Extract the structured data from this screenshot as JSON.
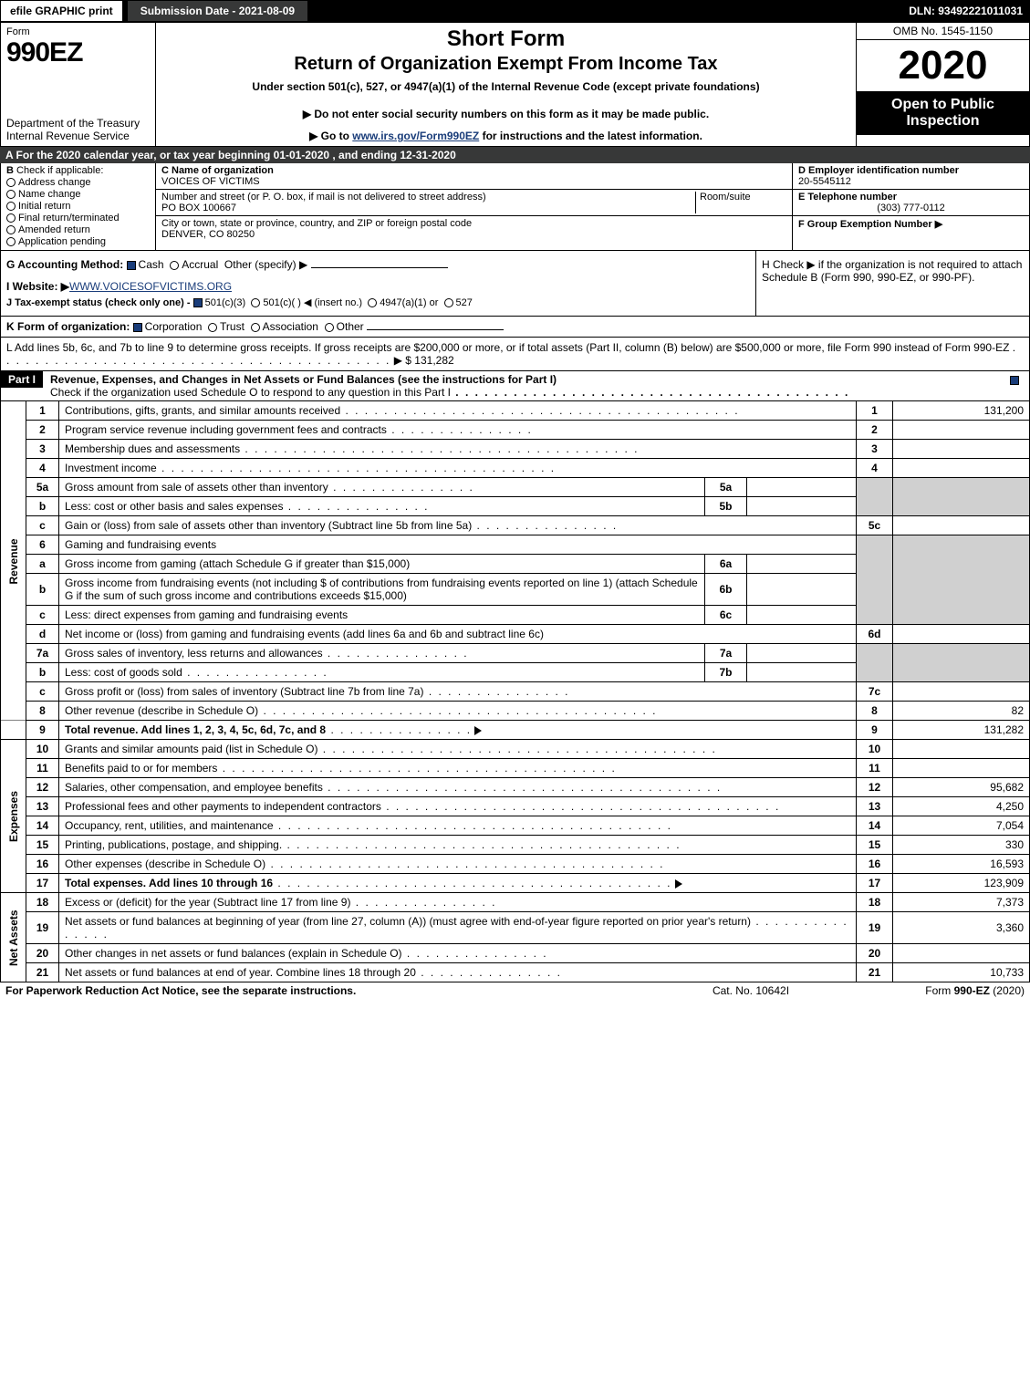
{
  "topbar": {
    "efile": "efile GRAPHIC print",
    "submission": "Submission Date - 2021-08-09",
    "dln": "DLN: 93492221011031"
  },
  "header": {
    "form_word": "Form",
    "form_code": "990EZ",
    "dept1": "Department of the Treasury",
    "dept2": "Internal Revenue Service",
    "short_form": "Short Form",
    "title": "Return of Organization Exempt From Income Tax",
    "under": "Under section 501(c), 527, or 4947(a)(1) of the Internal Revenue Code (except private foundations)",
    "ssn_note": "▶ Do not enter social security numbers on this form as it may be made public.",
    "goto_pre": "▶ Go to ",
    "goto_link": "www.irs.gov/Form990EZ",
    "goto_post": " for instructions and the latest information.",
    "omb": "OMB No. 1545-1150",
    "year": "2020",
    "open": "Open to Public Inspection"
  },
  "line_a": "A  For the 2020 calendar year, or tax year beginning 01-01-2020 , and ending 12-31-2020",
  "section_b": {
    "label": "B",
    "check_if": "Check if applicable:",
    "opts": [
      "Address change",
      "Name change",
      "Initial return",
      "Final return/terminated",
      "Amended return",
      "Application pending"
    ]
  },
  "section_c": {
    "c_label": "C Name of organization",
    "c_value": "VOICES OF VICTIMS",
    "addr_label": "Number and street (or P. O. box, if mail is not delivered to street address)",
    "addr_value": "PO BOX 100667",
    "room_label": "Room/suite",
    "city_label": "City or town, state or province, country, and ZIP or foreign postal code",
    "city_value": "DENVER, CO  80250"
  },
  "section_d": {
    "d_label": "D Employer identification number",
    "d_value": "20-5545112",
    "e_label": "E Telephone number",
    "e_value": "(303) 777-0112",
    "f_label": "F Group Exemption Number  ▶"
  },
  "ghij": {
    "g": "G Accounting Method:",
    "g_cash": "Cash",
    "g_accrual": "Accrual",
    "g_other": "Other (specify) ▶",
    "i_label": "I Website: ▶",
    "i_value": "WWW.VOICESOFVICTIMS.ORG",
    "j": "J Tax-exempt status (check only one) -",
    "j_501c3": "501(c)(3)",
    "j_501c": "501(c)(  ) ◀ (insert no.)",
    "j_4947": "4947(a)(1) or",
    "j_527": "527",
    "h_text": "H  Check ▶      if the organization is not required to attach Schedule B (Form 990, 990-EZ, or 990-PF)."
  },
  "k": {
    "label": "K Form of organization:",
    "opts": [
      "Corporation",
      "Trust",
      "Association",
      "Other"
    ]
  },
  "l": {
    "text": "L Add lines 5b, 6c, and 7b to line 9 to determine gross receipts. If gross receipts are $200,000 or more, or if total assets (Part II, column (B) below) are $500,000 or more, file Form 990 instead of Form 990-EZ",
    "arrow": "▶ $ 131,282"
  },
  "part1": {
    "label": "Part I",
    "title": "Revenue, Expenses, and Changes in Net Assets or Fund Balances (see the instructions for Part I)",
    "sub": "Check if the organization used Schedule O to respond to any question in this Part I"
  },
  "side_labels": {
    "rev": "Revenue",
    "exp": "Expenses",
    "na": "Net Assets"
  },
  "rows": {
    "r1": {
      "no": "1",
      "txt": "Contributions, gifts, grants, and similar amounts received",
      "ln": "1",
      "amt": "131,200"
    },
    "r2": {
      "no": "2",
      "txt": "Program service revenue including government fees and contracts",
      "ln": "2",
      "amt": ""
    },
    "r3": {
      "no": "3",
      "txt": "Membership dues and assessments",
      "ln": "3",
      "amt": ""
    },
    "r4": {
      "no": "4",
      "txt": "Investment income",
      "ln": "4",
      "amt": ""
    },
    "r5a": {
      "no": "5a",
      "txt": "Gross amount from sale of assets other than inventory",
      "sub": "5a"
    },
    "r5b": {
      "no": "b",
      "txt": "Less: cost or other basis and sales expenses",
      "sub": "5b"
    },
    "r5c": {
      "no": "c",
      "txt": "Gain or (loss) from sale of assets other than inventory (Subtract line 5b from line 5a)",
      "ln": "5c",
      "amt": ""
    },
    "r6": {
      "no": "6",
      "txt": "Gaming and fundraising events"
    },
    "r6a": {
      "no": "a",
      "txt": "Gross income from gaming (attach Schedule G if greater than $15,000)",
      "sub": "6a"
    },
    "r6b": {
      "no": "b",
      "txt": "Gross income from fundraising events (not including $                        of contributions from fundraising events reported on line 1) (attach Schedule G if the sum of such gross income and contributions exceeds $15,000)",
      "sub": "6b"
    },
    "r6c": {
      "no": "c",
      "txt": "Less: direct expenses from gaming and fundraising events",
      "sub": "6c"
    },
    "r6d": {
      "no": "d",
      "txt": "Net income or (loss) from gaming and fundraising events (add lines 6a and 6b and subtract line 6c)",
      "ln": "6d",
      "amt": ""
    },
    "r7a": {
      "no": "7a",
      "txt": "Gross sales of inventory, less returns and allowances",
      "sub": "7a"
    },
    "r7b": {
      "no": "b",
      "txt": "Less: cost of goods sold",
      "sub": "7b"
    },
    "r7c": {
      "no": "c",
      "txt": "Gross profit or (loss) from sales of inventory (Subtract line 7b from line 7a)",
      "ln": "7c",
      "amt": ""
    },
    "r8": {
      "no": "8",
      "txt": "Other revenue (describe in Schedule O)",
      "ln": "8",
      "amt": "82"
    },
    "r9": {
      "no": "9",
      "txt": "Total revenue. Add lines 1, 2, 3, 4, 5c, 6d, 7c, and 8",
      "ln": "9",
      "amt": "131,282"
    },
    "r10": {
      "no": "10",
      "txt": "Grants and similar amounts paid (list in Schedule O)",
      "ln": "10",
      "amt": ""
    },
    "r11": {
      "no": "11",
      "txt": "Benefits paid to or for members",
      "ln": "11",
      "amt": ""
    },
    "r12": {
      "no": "12",
      "txt": "Salaries, other compensation, and employee benefits",
      "ln": "12",
      "amt": "95,682"
    },
    "r13": {
      "no": "13",
      "txt": "Professional fees and other payments to independent contractors",
      "ln": "13",
      "amt": "4,250"
    },
    "r14": {
      "no": "14",
      "txt": "Occupancy, rent, utilities, and maintenance",
      "ln": "14",
      "amt": "7,054"
    },
    "r15": {
      "no": "15",
      "txt": "Printing, publications, postage, and shipping.",
      "ln": "15",
      "amt": "330"
    },
    "r16": {
      "no": "16",
      "txt": "Other expenses (describe in Schedule O)",
      "ln": "16",
      "amt": "16,593"
    },
    "r17": {
      "no": "17",
      "txt": "Total expenses. Add lines 10 through 16",
      "ln": "17",
      "amt": "123,909"
    },
    "r18": {
      "no": "18",
      "txt": "Excess or (deficit) for the year (Subtract line 17 from line 9)",
      "ln": "18",
      "amt": "7,373"
    },
    "r19": {
      "no": "19",
      "txt": "Net assets or fund balances at beginning of year (from line 27, column (A)) (must agree with end-of-year figure reported on prior year's return)",
      "ln": "19",
      "amt": "3,360"
    },
    "r20": {
      "no": "20",
      "txt": "Other changes in net assets or fund balances (explain in Schedule O)",
      "ln": "20",
      "amt": ""
    },
    "r21": {
      "no": "21",
      "txt": "Net assets or fund balances at end of year. Combine lines 18 through 20",
      "ln": "21",
      "amt": "10,733"
    }
  },
  "footer": {
    "left": "For Paperwork Reduction Act Notice, see the separate instructions.",
    "center": "Cat. No. 10642I",
    "right_pre": "Form ",
    "right_bold": "990-EZ",
    "right_post": " (2020)"
  }
}
